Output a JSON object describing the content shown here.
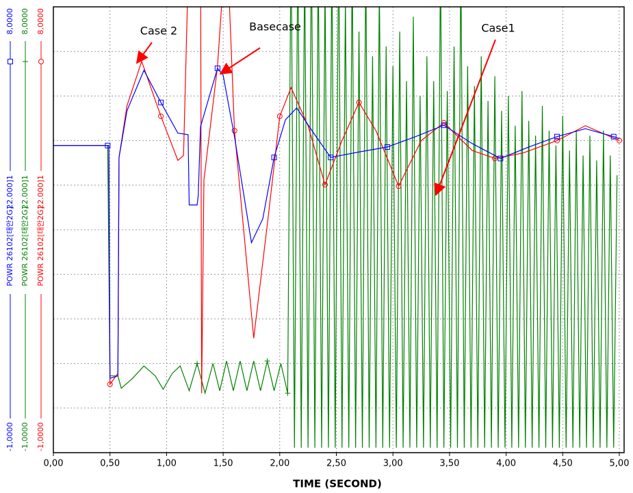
{
  "chart_data": {
    "type": "line",
    "xlabel": "TIME (SECOND)",
    "xlim": [
      0,
      5
    ],
    "xticks": [
      {
        "value": 0,
        "label": "0,00"
      },
      {
        "value": 0.5,
        "label": "0,50"
      },
      {
        "value": 1,
        "label": "1,00"
      },
      {
        "value": 1.5,
        "label": "1,50"
      },
      {
        "value": 2,
        "label": "2,00"
      },
      {
        "value": 2.5,
        "label": "2,50"
      },
      {
        "value": 3,
        "label": "3,00"
      },
      {
        "value": 3.5,
        "label": "3,50"
      },
      {
        "value": 4,
        "label": "4,00"
      },
      {
        "value": 4.5,
        "label": "4,50"
      },
      {
        "value": 5,
        "label": "5,00"
      }
    ],
    "ylim": [
      -1,
      8
    ],
    "yticks": [
      {
        "value": -1,
        "label": "-1,0000"
      },
      {
        "value": 8,
        "label": "8,0000"
      }
    ],
    "grid": true,
    "annotations": [
      "Case 2",
      "Basecase",
      "Case1"
    ],
    "series": [
      {
        "name": "POWR 26102[태안2G]",
        "channel": "22.000]1",
        "color": "#0000ff",
        "marker": "square",
        "x": [
          0,
          0.48,
          0.49,
          0.5,
          0.57,
          0.58,
          0.65,
          0.8,
          0.95,
          1.1,
          1.19,
          1.2,
          1.27,
          1.28,
          1.3,
          1.45,
          1.5,
          1.6,
          1.75,
          1.85,
          1.95,
          2.05,
          2.15,
          2.3,
          2.45,
          2.7,
          2.95,
          3.2,
          3.45,
          3.7,
          3.95,
          4.2,
          4.45,
          4.7,
          4.95,
          5.0
        ],
        "values": [
          5.2,
          5.2,
          5.2,
          0.5,
          0.55,
          4.96,
          5.9,
          6.72,
          6.07,
          5.45,
          5.42,
          4.0,
          4.0,
          4.2,
          5.58,
          6.76,
          6.62,
          5.38,
          3.24,
          3.72,
          4.96,
          5.72,
          5.96,
          5.45,
          4.96,
          5.07,
          5.17,
          5.38,
          5.61,
          5.24,
          4.94,
          5.17,
          5.38,
          5.54,
          5.38,
          5.34
        ]
      },
      {
        "name": "POWR 26102[태안2G]",
        "channel": "22.000]1",
        "color": "#008000",
        "marker": "plus",
        "x": [
          0,
          0.48,
          0.5,
          0.57,
          0.6,
          0.7,
          0.8,
          0.9,
          0.97,
          1.05,
          1.12,
          1.2,
          1.27,
          1.34,
          1.41,
          1.47,
          1.53,
          1.59,
          1.65,
          1.71,
          1.77,
          1.83,
          1.89,
          1.95,
          2.01,
          2.07,
          2.1,
          2.13,
          2.16,
          2.19,
          2.22,
          2.25,
          2.28,
          2.31,
          2.34,
          2.37,
          2.4,
          2.43,
          2.46,
          2.49,
          2.52,
          2.55,
          2.58,
          2.61,
          2.64,
          2.67,
          2.7,
          2.73,
          2.76,
          2.79,
          2.82,
          2.85,
          2.88,
          2.91,
          2.94,
          2.97,
          3.0,
          3.03,
          3.06,
          3.09,
          3.12,
          3.15,
          3.18,
          3.21,
          3.24,
          3.27,
          3.3,
          3.33,
          3.36,
          3.39,
          3.42,
          3.45,
          3.48,
          3.51,
          3.54,
          3.57,
          3.6,
          3.63,
          3.66,
          3.69,
          3.72,
          3.75,
          3.78,
          3.81,
          3.84,
          3.87,
          3.9,
          3.93,
          3.96,
          3.99,
          4.02,
          4.05,
          4.08,
          4.11,
          4.14,
          4.17,
          4.2,
          4.23,
          4.26,
          4.29,
          4.32,
          4.35,
          4.38,
          4.41,
          4.44,
          4.47,
          4.5,
          4.53,
          4.56,
          4.59,
          4.62,
          4.65,
          4.68,
          4.71,
          4.74,
          4.77,
          4.8,
          4.83,
          4.86,
          4.89,
          4.92,
          4.95,
          4.98
        ],
        "values": [
          5.2,
          5.2,
          0.55,
          0.55,
          0.3,
          0.5,
          0.75,
          0.55,
          0.28,
          0.6,
          0.75,
          0.25,
          0.8,
          0.2,
          0.8,
          0.25,
          0.85,
          0.25,
          0.85,
          0.25,
          0.85,
          0.25,
          0.85,
          0.25,
          0.8,
          0.2,
          9.5,
          -0.9,
          9.5,
          -0.9,
          9,
          -0.9,
          9.5,
          -0.9,
          9,
          -0.9,
          8.5,
          -0.9,
          9,
          -0.9,
          9.5,
          -0.9,
          8.2,
          -0.9,
          9,
          -0.9,
          7.5,
          -0.9,
          9,
          -0.9,
          7,
          -0.9,
          8.5,
          -0.9,
          7.2,
          -0.9,
          6.8,
          -0.9,
          7.5,
          -0.9,
          6.5,
          -0.9,
          7.8,
          -0.9,
          6.2,
          -0.9,
          7,
          -0.9,
          6.5,
          -0.9,
          9,
          -0.9,
          6.3,
          -0.9,
          7.2,
          -0.9,
          9,
          -0.9,
          6.8,
          -0.9,
          6.4,
          -0.9,
          7,
          -0.9,
          6.1,
          -0.9,
          6.6,
          -0.9,
          5.9,
          -0.9,
          6.2,
          -0.9,
          5.6,
          -0.9,
          6.3,
          -0.9,
          5.7,
          -0.9,
          5.4,
          -0.9,
          6,
          -0.9,
          5.5,
          -0.9,
          5.2,
          -0.9,
          5.8,
          -0.9,
          5.1,
          -0.9,
          5.5,
          -0.9,
          5,
          -0.9,
          5.4,
          -0.9,
          4.9,
          -0.9,
          5.5,
          -0.9,
          5,
          -0.9,
          4.6
        ]
      },
      {
        "name": "POWR 26102[태안2G]",
        "channel": "22.000]1",
        "color": "#ff0000",
        "marker": "circle",
        "x": [
          0,
          0.48,
          0.49,
          0.5,
          0.57,
          0.58,
          0.65,
          0.78,
          0.95,
          1.1,
          1.15,
          1.2,
          1.3,
          1.31,
          1.33,
          1.45,
          1.53,
          1.6,
          1.77,
          1.9,
          2.0,
          2.1,
          2.25,
          2.4,
          2.55,
          2.7,
          2.85,
          3.05,
          3.25,
          3.45,
          3.7,
          3.9,
          4.15,
          4.45,
          4.7,
          5.0
        ],
        "values": [
          5.2,
          5.2,
          5.2,
          0.38,
          0.6,
          4.96,
          6.0,
          6.9,
          5.79,
          4.9,
          5.0,
          9.5,
          9.5,
          0.2,
          4.5,
          6.8,
          9.5,
          5.5,
          1.31,
          3.8,
          5.79,
          6.37,
          5.6,
          4.41,
          5.3,
          6.07,
          5.5,
          4.38,
          5.3,
          5.66,
          5.1,
          4.94,
          5.05,
          5.3,
          5.6,
          5.3
        ]
      }
    ]
  }
}
